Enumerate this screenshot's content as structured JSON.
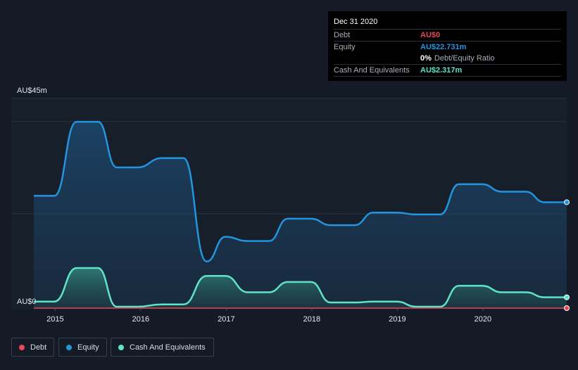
{
  "chart_data": {
    "type": "area",
    "y_top_label": "AU$45m",
    "y_bottom_label": "AU$0",
    "ylim": [
      0,
      45
    ],
    "x_ticks": [
      "2015",
      "2016",
      "2017",
      "2018",
      "2019",
      "2020"
    ],
    "xlim": [
      2014.75,
      2020.98
    ],
    "series": [
      {
        "name": "Equity",
        "color": "#2394df",
        "x": [
          2014.75,
          2014.99,
          2015.25,
          2015.5,
          2015.72,
          2015.96,
          2016.25,
          2016.5,
          2016.77,
          2016.99,
          2017.25,
          2017.5,
          2017.72,
          2017.99,
          2018.22,
          2018.5,
          2018.72,
          2018.99,
          2019.22,
          2019.5,
          2019.72,
          2019.99,
          2020.22,
          2020.5,
          2020.72,
          2020.98
        ],
        "values": [
          24.1,
          24.1,
          40.0,
          40.0,
          30.2,
          30.2,
          32.2,
          32.2,
          10.0,
          15.3,
          14.4,
          14.4,
          19.2,
          19.2,
          17.8,
          17.8,
          20.5,
          20.5,
          20.1,
          20.1,
          26.6,
          26.6,
          25.0,
          25.0,
          22.73,
          22.73
        ]
      },
      {
        "name": "Cash And Equivalents",
        "color": "#5fe3c8",
        "x": [
          2014.75,
          2014.99,
          2015.25,
          2015.5,
          2015.72,
          2015.96,
          2016.25,
          2016.5,
          2016.77,
          2016.99,
          2017.25,
          2017.5,
          2017.72,
          2017.99,
          2018.22,
          2018.5,
          2018.72,
          2018.99,
          2019.22,
          2019.5,
          2019.72,
          2019.99,
          2020.22,
          2020.5,
          2020.72,
          2020.98
        ],
        "values": [
          1.4,
          1.4,
          8.6,
          8.6,
          0.3,
          0.3,
          0.8,
          0.8,
          6.9,
          6.9,
          3.4,
          3.4,
          5.6,
          5.6,
          1.2,
          1.2,
          1.4,
          1.4,
          0.3,
          0.3,
          4.8,
          4.8,
          3.4,
          3.4,
          2.32,
          2.32
        ]
      },
      {
        "name": "Debt",
        "color": "#e5485a",
        "x": [
          2014.75,
          2020.98
        ],
        "values": [
          0,
          0
        ]
      }
    ]
  },
  "tooltip": {
    "date": "Dec 31 2020",
    "debt_label": "Debt",
    "debt_value": "AU$0",
    "equity_label": "Equity",
    "equity_value": "AU$22.731m",
    "ratio_value": "0%",
    "ratio_label": "Debt/Equity Ratio",
    "cash_label": "Cash And Equivalents",
    "cash_value": "AU$2.317m"
  },
  "legend": [
    {
      "label": "Debt",
      "color": "#e5485a"
    },
    {
      "label": "Equity",
      "color": "#2394df"
    },
    {
      "label": "Cash And Equivalents",
      "color": "#5fe3c8"
    }
  ]
}
